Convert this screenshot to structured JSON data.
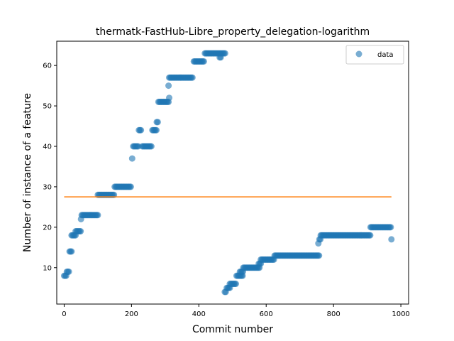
{
  "chart_data": {
    "type": "scatter",
    "title": "thermatk-FastHub-Libre_property_delegation-logarithm",
    "xlabel": "Commit number",
    "ylabel": "Number of instance of a feature",
    "xlim": [
      -22,
      1023
    ],
    "ylim": [
      1,
      66
    ],
    "xticks": [
      0,
      200,
      400,
      600,
      800,
      1000
    ],
    "yticks": [
      10,
      20,
      30,
      40,
      50,
      60
    ],
    "grid": false,
    "legend": {
      "position": "top-right",
      "entries": [
        "data"
      ]
    },
    "colors": {
      "scatter": "#1f77b4",
      "line": "#ff7f0e"
    },
    "series": [
      {
        "name": "data",
        "kind": "scatter",
        "runs": [
          {
            "x0": 0,
            "x1": 8,
            "y": 8
          },
          {
            "x0": 8,
            "x1": 14,
            "y": 9
          },
          {
            "x0": 16,
            "x1": 22,
            "y": 14
          },
          {
            "x0": 22,
            "x1": 34,
            "y": 18
          },
          {
            "x0": 34,
            "x1": 50,
            "y": 19
          },
          {
            "x0": 50,
            "x1": 52,
            "y": 22
          },
          {
            "x0": 52,
            "x1": 100,
            "y": 23
          },
          {
            "x0": 100,
            "x1": 150,
            "y": 28
          },
          {
            "x0": 150,
            "x1": 200,
            "y": 30
          },
          {
            "x0": 202,
            "x1": 202,
            "y": 37
          },
          {
            "x0": 205,
            "x1": 222,
            "y": 40
          },
          {
            "x0": 222,
            "x1": 230,
            "y": 44
          },
          {
            "x0": 232,
            "x1": 260,
            "y": 40
          },
          {
            "x0": 262,
            "x1": 275,
            "y": 44
          },
          {
            "x0": 275,
            "x1": 280,
            "y": 46
          },
          {
            "x0": 280,
            "x1": 312,
            "y": 51
          },
          {
            "x0": 312,
            "x1": 312,
            "y": 52
          },
          {
            "x0": 310,
            "x1": 310,
            "y": 55
          },
          {
            "x0": 312,
            "x1": 382,
            "y": 57
          },
          {
            "x0": 385,
            "x1": 415,
            "y": 61
          },
          {
            "x0": 418,
            "x1": 478,
            "y": 63
          },
          {
            "x0": 462,
            "x1": 466,
            "y": 62
          },
          {
            "x0": 477,
            "x1": 482,
            "y": 4
          },
          {
            "x0": 483,
            "x1": 492,
            "y": 5
          },
          {
            "x0": 492,
            "x1": 512,
            "y": 6
          },
          {
            "x0": 512,
            "x1": 532,
            "y": 8
          },
          {
            "x0": 522,
            "x1": 532,
            "y": 9
          },
          {
            "x0": 532,
            "x1": 580,
            "y": 10
          },
          {
            "x0": 578,
            "x1": 584,
            "y": 11
          },
          {
            "x0": 584,
            "x1": 625,
            "y": 12
          },
          {
            "x0": 625,
            "x1": 758,
            "y": 13
          },
          {
            "x0": 755,
            "x1": 757,
            "y": 16
          },
          {
            "x0": 758,
            "x1": 762,
            "y": 17
          },
          {
            "x0": 762,
            "x1": 910,
            "y": 18
          },
          {
            "x0": 910,
            "x1": 972,
            "y": 20
          },
          {
            "x0": 972,
            "x1": 972,
            "y": 17
          }
        ]
      },
      {
        "name": "",
        "kind": "line",
        "x": [
          0,
          972
        ],
        "y": [
          27.5,
          27.5
        ]
      }
    ]
  }
}
